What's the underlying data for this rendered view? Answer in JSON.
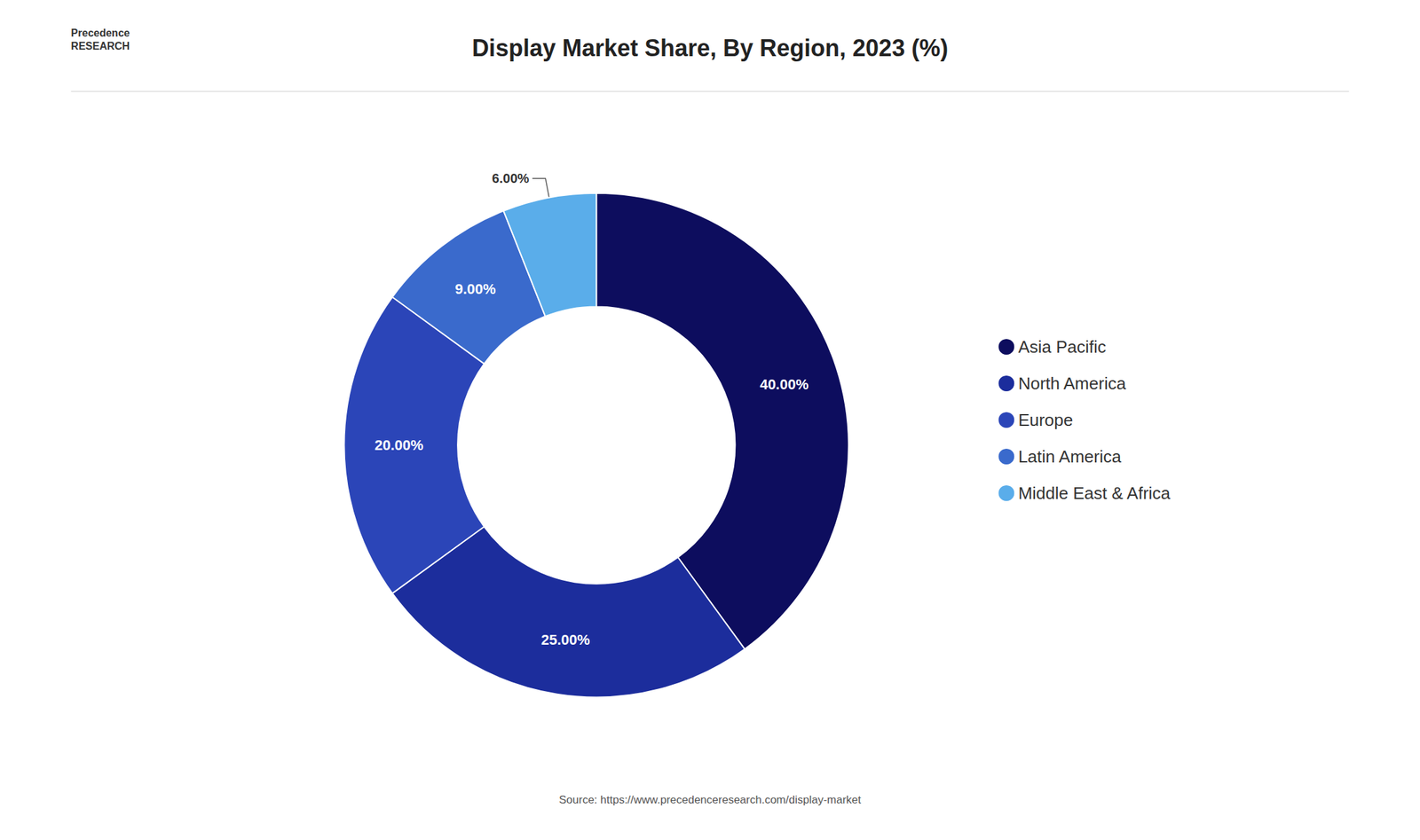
{
  "chart_data": {
    "type": "pie",
    "title": "Display Market Share, By Region, 2023 (%)",
    "categories": [
      "Asia Pacific",
      "North America",
      "Europe",
      "Latin America",
      "Middle East & Africa"
    ],
    "values": [
      40,
      25,
      20,
      9,
      6
    ],
    "value_labels": [
      "40.00%",
      "25.00%",
      "20.00%",
      "9.00%",
      "6.00%"
    ],
    "colors": [
      "#0d0d5e",
      "#1c2d9c",
      "#2b45b8",
      "#3a6acc",
      "#5aadea"
    ],
    "data_labels": true,
    "legend": "right",
    "annotations": [
      "Precedence\nRESEARCH",
      "Source: https://www.precedenceresearch.com/display-market"
    ]
  }
}
